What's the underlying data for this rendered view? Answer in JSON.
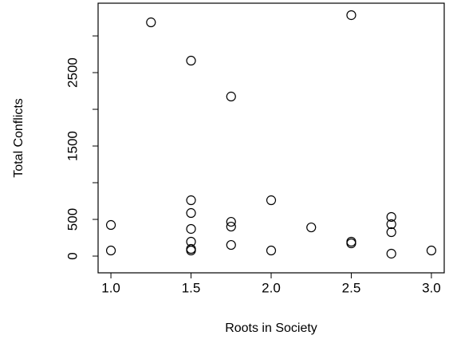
{
  "chart_data": {
    "type": "scatter",
    "xlabel": "Roots in Society",
    "ylabel": "Total Conflicts",
    "x": [
      1.0,
      1.0,
      1.25,
      1.5,
      1.5,
      1.5,
      1.5,
      1.5,
      1.5,
      1.5,
      1.75,
      1.75,
      1.75,
      1.75,
      2.0,
      2.0,
      2.25,
      2.5,
      2.5,
      2.5,
      2.75,
      2.75,
      2.75,
      2.75,
      3.0
    ],
    "values": [
      424,
      76,
      3185,
      2663,
      761,
      587,
      370,
      196,
      98,
      76,
      2174,
      467,
      402,
      152,
      761,
      76,
      391,
      3283,
      196,
      174,
      533,
      435,
      326,
      33,
      76
    ],
    "color": "#000000",
    "xlim": [
      0.92,
      3.08
    ],
    "ylim": [
      -228,
      3446
    ],
    "xticks": [
      {
        "value": 1,
        "label": "1.0"
      },
      {
        "value": 1.5,
        "label": "1.5"
      },
      {
        "value": 2,
        "label": "2.0"
      },
      {
        "value": 2.5,
        "label": "2.5"
      },
      {
        "value": 3,
        "label": "3.0"
      }
    ],
    "yticks": [
      0,
      500,
      1500,
      2500
    ],
    "yticks_minor": [
      1000,
      2000,
      3000
    ],
    "grid": false
  }
}
